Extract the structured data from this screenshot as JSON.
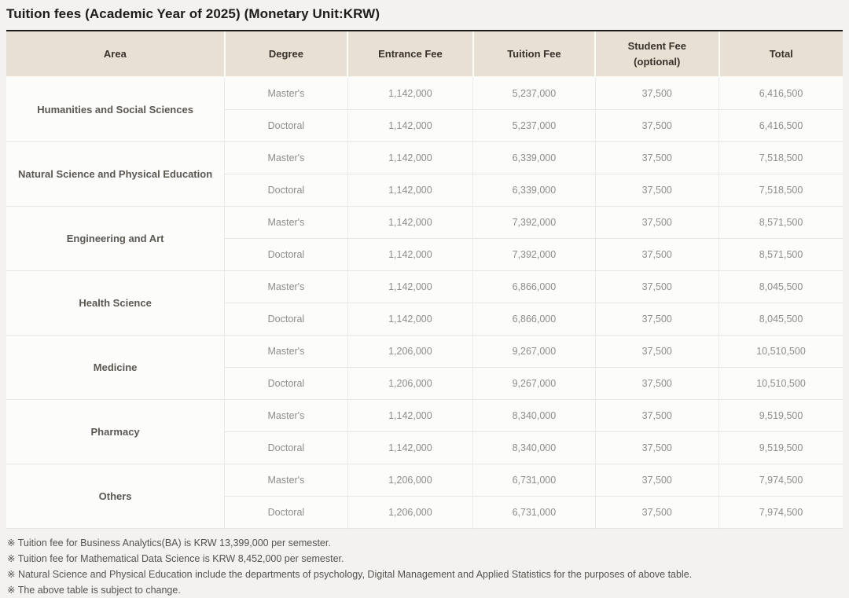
{
  "page": {
    "title": "Tuition fees (Academic Year of 2025) (Monetary Unit:KRW)"
  },
  "colors": {
    "header_bg": "#e8e0d2",
    "table_top_border": "#1d1b19",
    "page_bg": "#f3f2f0",
    "data_text": "#8f8d8a",
    "area_text": "#5b5751"
  },
  "table": {
    "columns": [
      "Area",
      "Degree",
      "Entrance Fee",
      "Tuition Fee",
      "Student Fee\n(optional)",
      "Total"
    ],
    "groups": [
      {
        "area": "Humanities and Social Sciences",
        "rows": [
          {
            "degree": "Master's",
            "entrance_fee": "1,142,000",
            "tuition_fee": "5,237,000",
            "student_fee": "37,500",
            "total": "6,416,500"
          },
          {
            "degree": "Doctoral",
            "entrance_fee": "1,142,000",
            "tuition_fee": "5,237,000",
            "student_fee": "37,500",
            "total": "6,416,500"
          }
        ]
      },
      {
        "area": "Natural Science and Physical Education",
        "rows": [
          {
            "degree": "Master's",
            "entrance_fee": "1,142,000",
            "tuition_fee": "6,339,000",
            "student_fee": "37,500",
            "total": "7,518,500"
          },
          {
            "degree": "Doctoral",
            "entrance_fee": "1,142,000",
            "tuition_fee": "6,339,000",
            "student_fee": "37,500",
            "total": "7,518,500"
          }
        ]
      },
      {
        "area": "Engineering and Art",
        "rows": [
          {
            "degree": "Master's",
            "entrance_fee": "1,142,000",
            "tuition_fee": "7,392,000",
            "student_fee": "37,500",
            "total": "8,571,500"
          },
          {
            "degree": "Doctoral",
            "entrance_fee": "1,142,000",
            "tuition_fee": "7,392,000",
            "student_fee": "37,500",
            "total": "8,571,500"
          }
        ]
      },
      {
        "area": "Health Science",
        "rows": [
          {
            "degree": "Master's",
            "entrance_fee": "1,142,000",
            "tuition_fee": "6,866,000",
            "student_fee": "37,500",
            "total": "8,045,500"
          },
          {
            "degree": "Doctoral",
            "entrance_fee": "1,142,000",
            "tuition_fee": "6,866,000",
            "student_fee": "37,500",
            "total": "8,045,500"
          }
        ]
      },
      {
        "area": "Medicine",
        "rows": [
          {
            "degree": "Master's",
            "entrance_fee": "1,206,000",
            "tuition_fee": "9,267,000",
            "student_fee": "37,500",
            "total": "10,510,500"
          },
          {
            "degree": "Doctoral",
            "entrance_fee": "1,206,000",
            "tuition_fee": "9,267,000",
            "student_fee": "37,500",
            "total": "10,510,500"
          }
        ]
      },
      {
        "area": "Pharmacy",
        "rows": [
          {
            "degree": "Master's",
            "entrance_fee": "1,142,000",
            "tuition_fee": "8,340,000",
            "student_fee": "37,500",
            "total": "9,519,500"
          },
          {
            "degree": "Doctoral",
            "entrance_fee": "1,142,000",
            "tuition_fee": "8,340,000",
            "student_fee": "37,500",
            "total": "9,519,500"
          }
        ]
      },
      {
        "area": "Others",
        "rows": [
          {
            "degree": "Master's",
            "entrance_fee": "1,206,000",
            "tuition_fee": "6,731,000",
            "student_fee": "37,500",
            "total": "7,974,500"
          },
          {
            "degree": "Doctoral",
            "entrance_fee": "1,206,000",
            "tuition_fee": "6,731,000",
            "student_fee": "37,500",
            "total": "7,974,500"
          }
        ]
      }
    ]
  },
  "footnotes": [
    "※ Tuition fee for Business Analytics(BA) is KRW 13,399,000 per semester.",
    "※ Tuition fee for Mathematical Data Science is KRW 8,452,000 per semester.",
    "※ Natural Science and Physical Education include the departments of psychology, Digital Management and Applied Statistics for the purposes of above table.",
    "※ The above table is subject to change."
  ]
}
